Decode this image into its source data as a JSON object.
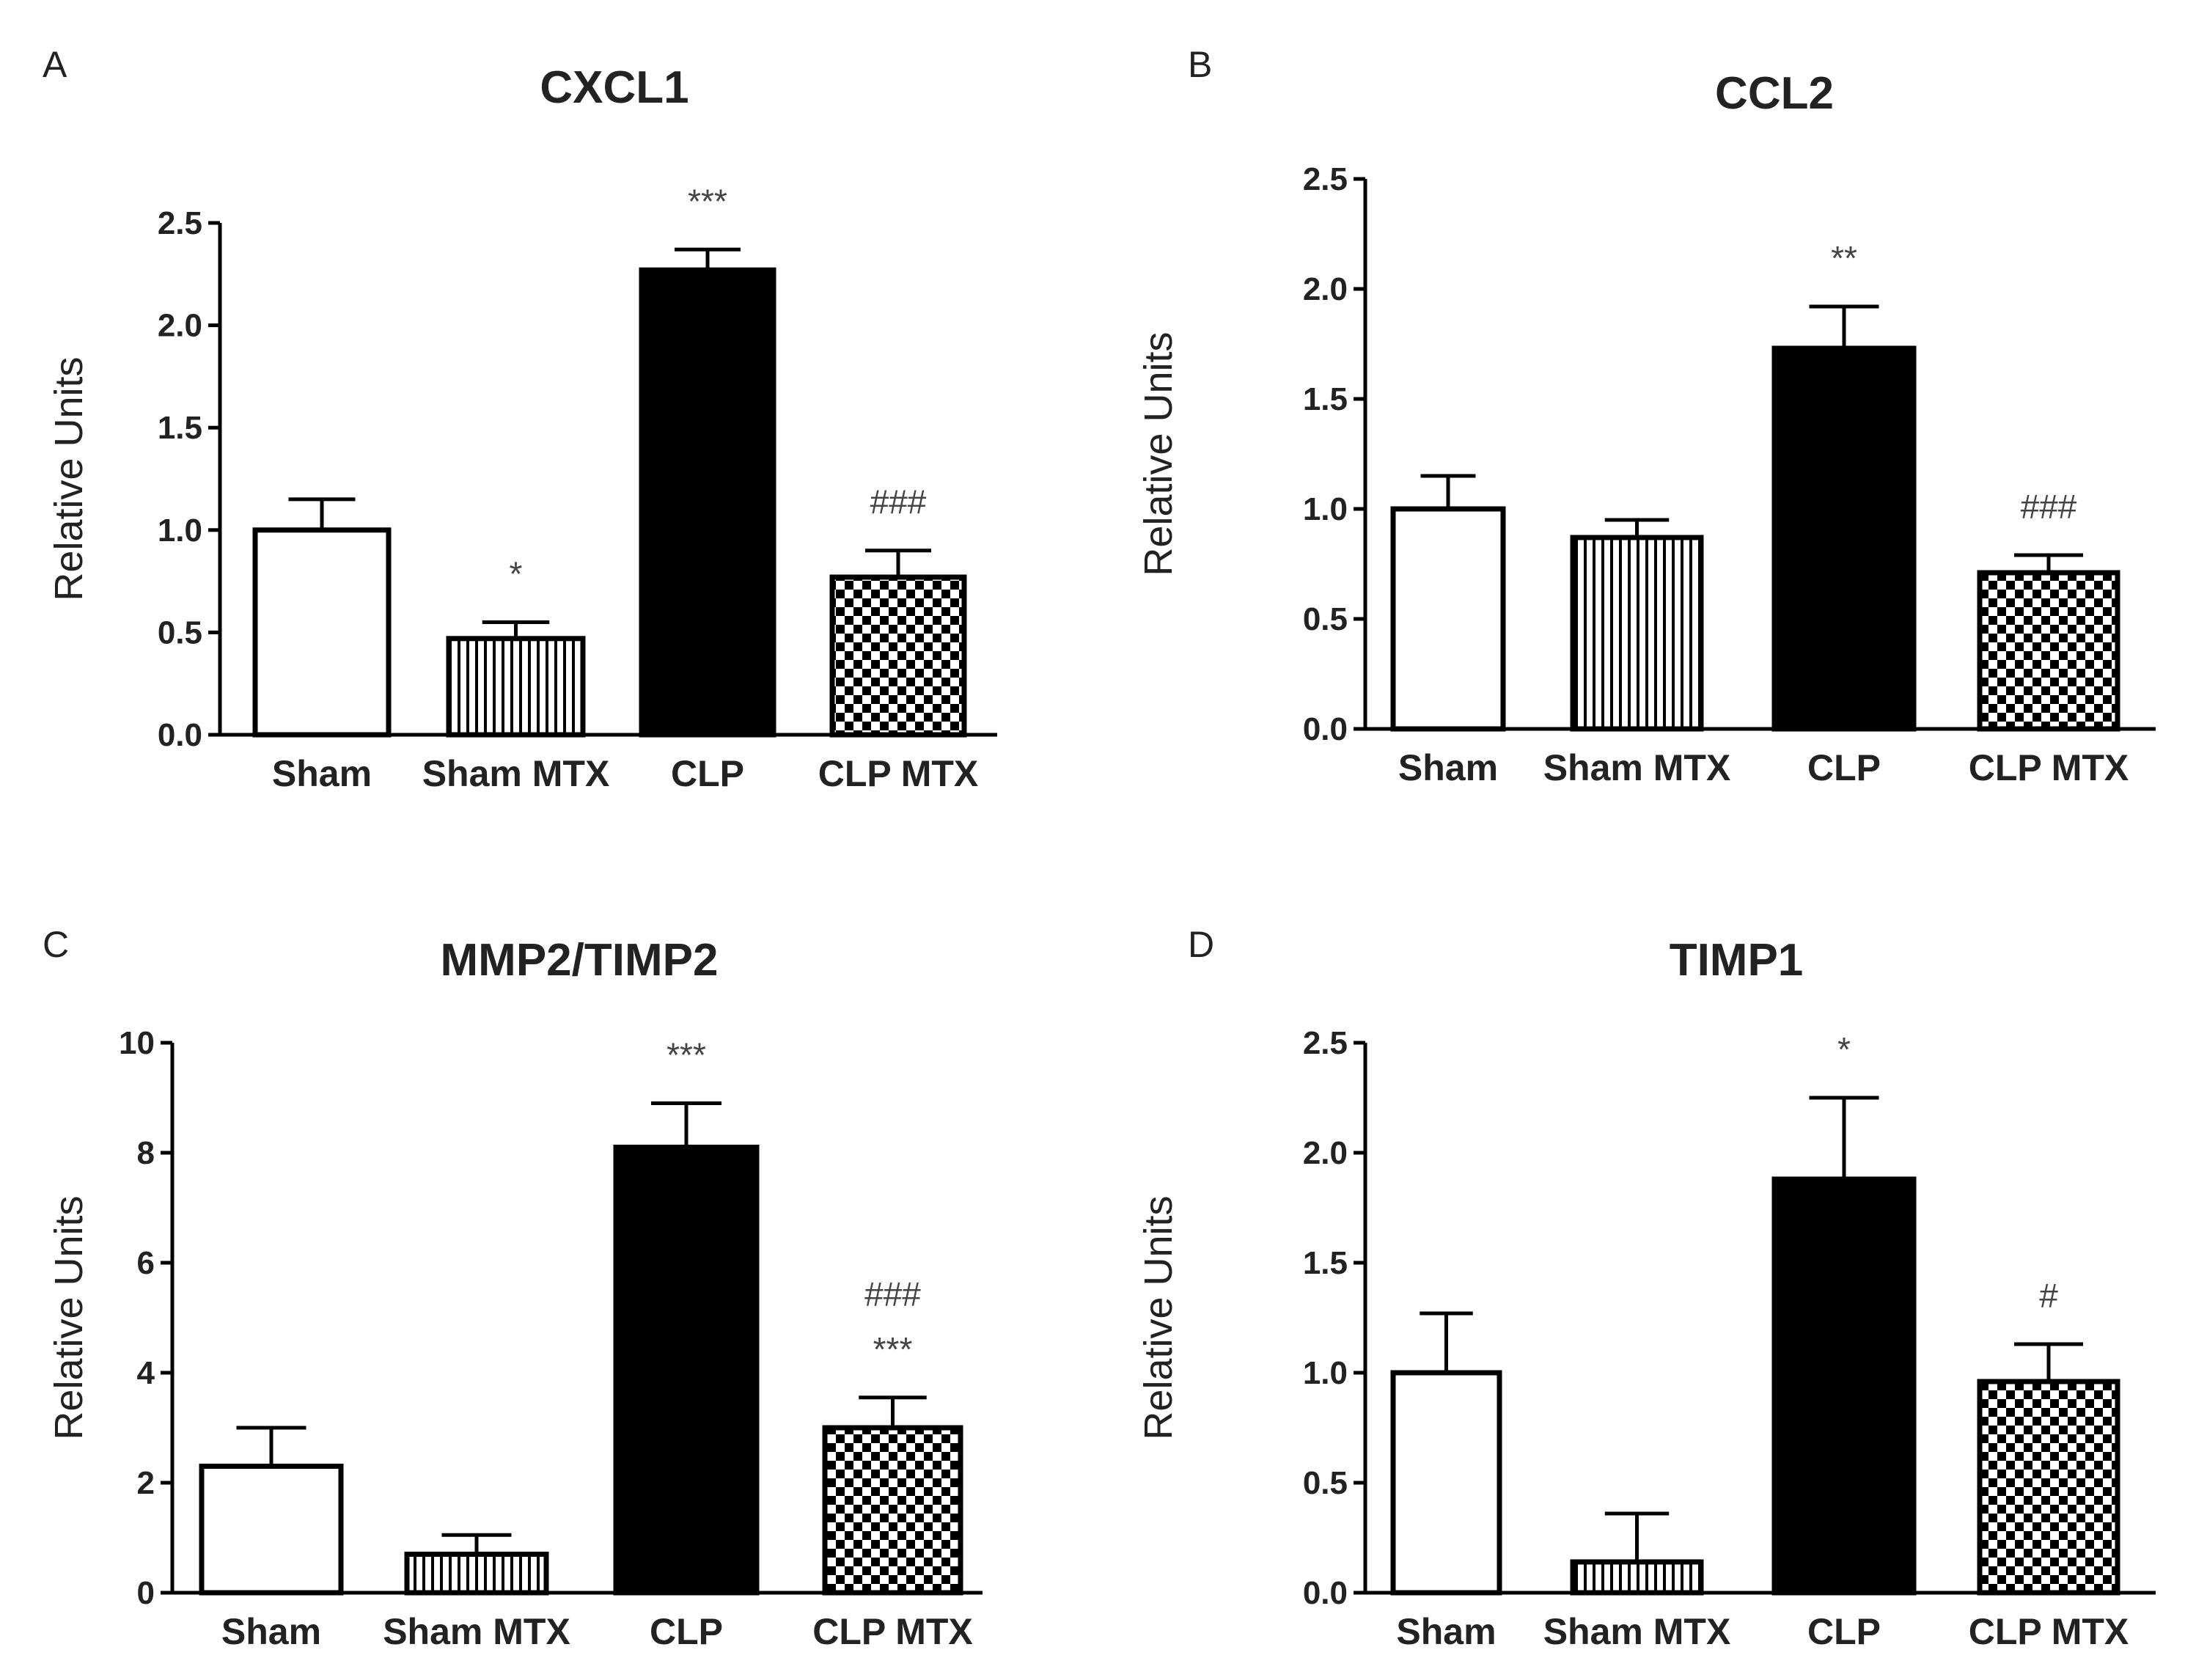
{
  "chart_data": [
    {
      "panel": "A",
      "type": "bar",
      "title": "CXCL1",
      "ylabel": "Relative Units",
      "xlabel": "",
      "ylim": [
        0,
        2.5
      ],
      "yticks": [
        "0.0",
        "0.5",
        "1.0",
        "1.5",
        "2.0",
        "2.5"
      ],
      "categories": [
        "Sham",
        "Sham MTX",
        "CLP",
        "CLP MTX"
      ],
      "values": [
        1.0,
        0.47,
        2.27,
        0.77
      ],
      "errors": [
        0.15,
        0.08,
        0.1,
        0.13
      ],
      "fills": [
        "white",
        "vstripe",
        "black",
        "checker"
      ],
      "annotations": [
        [],
        [
          "*"
        ],
        [
          "***"
        ],
        [
          "###"
        ]
      ]
    },
    {
      "panel": "B",
      "type": "bar",
      "title": "CCL2",
      "ylabel": "Relative Units",
      "xlabel": "",
      "ylim": [
        0,
        2.5
      ],
      "yticks": [
        "0.0",
        "0.5",
        "1.0",
        "1.5",
        "2.0",
        "2.5"
      ],
      "categories": [
        "Sham",
        "Sham MTX",
        "CLP",
        "CLP MTX"
      ],
      "values": [
        1.0,
        0.87,
        1.73,
        0.71
      ],
      "errors": [
        0.15,
        0.08,
        0.19,
        0.08
      ],
      "fills": [
        "white",
        "vstripe",
        "black",
        "checker"
      ],
      "annotations": [
        [],
        [],
        [
          "**"
        ],
        [
          "###"
        ]
      ]
    },
    {
      "panel": "C",
      "type": "bar",
      "title": "MMP2/TIMP2",
      "ylabel": "Relative Units",
      "xlabel": "",
      "ylim": [
        0,
        10
      ],
      "yticks": [
        "0",
        "2",
        "4",
        "6",
        "8",
        "10"
      ],
      "categories": [
        "Sham",
        "Sham MTX",
        "CLP",
        "CLP MTX"
      ],
      "values": [
        2.3,
        0.7,
        8.1,
        3.0
      ],
      "errors": [
        0.7,
        0.35,
        0.8,
        0.55
      ],
      "fills": [
        "white",
        "vstripe",
        "black",
        "checker"
      ],
      "annotations": [
        [],
        [],
        [
          "***"
        ],
        [
          "###",
          "***"
        ]
      ]
    },
    {
      "panel": "D",
      "type": "bar",
      "title": "TIMP1",
      "ylabel": "Relative Units",
      "xlabel": "",
      "ylim": [
        0,
        2.5
      ],
      "yticks": [
        "0.0",
        "0.5",
        "1.0",
        "1.5",
        "2.0",
        "2.5"
      ],
      "categories": [
        "Sham",
        "Sham MTX",
        "CLP",
        "CLP MTX"
      ],
      "values": [
        1.0,
        0.14,
        1.88,
        0.96
      ],
      "errors": [
        0.27,
        0.22,
        0.37,
        0.17
      ],
      "fills": [
        "white",
        "vstripe",
        "black",
        "checker"
      ],
      "annotations": [
        [],
        [],
        [
          "*"
        ],
        [
          "#"
        ]
      ]
    }
  ]
}
